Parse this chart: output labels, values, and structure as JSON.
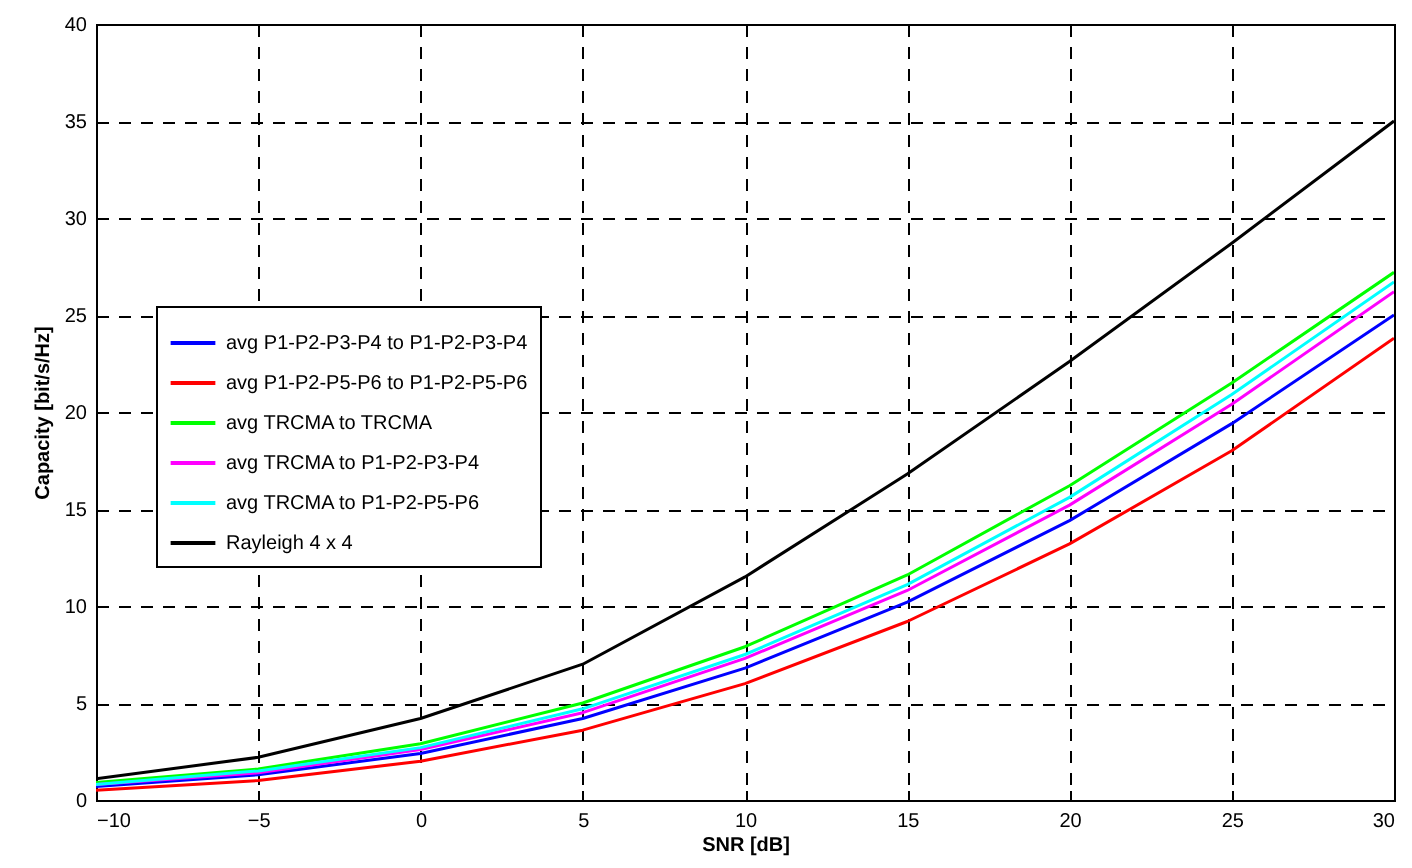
{
  "chart_data": {
    "type": "line",
    "xlabel": "SNR [dB]",
    "ylabel": "Capacity [bit/s/Hz]",
    "x": [
      -10,
      -5,
      0,
      5,
      10,
      15,
      20,
      25,
      30
    ],
    "xlim": [
      -10,
      30
    ],
    "xticks": [
      -10,
      -5,
      0,
      5,
      10,
      15,
      20,
      25,
      30
    ],
    "ylim": [
      0,
      40
    ],
    "yticks": [
      0,
      5,
      10,
      15,
      20,
      25,
      30,
      35,
      40
    ],
    "grid": true,
    "legend": "left",
    "line_style": "solid",
    "series": [
      {
        "name": "avg P1-P2-P3-P4 to P1-P2-P3-P4",
        "color": "#0000ff",
        "values": [
          0.7,
          1.3,
          2.4,
          4.2,
          6.8,
          10.2,
          14.4,
          19.4,
          25.0
        ]
      },
      {
        "name": "avg P1-P2-P5-P6 to P1-P2-P5-P6",
        "color": "#ff0000",
        "values": [
          0.5,
          1.0,
          2.0,
          3.6,
          6.0,
          9.2,
          13.2,
          18.0,
          23.8
        ]
      },
      {
        "name": "avg TRCMA to TRCMA",
        "color": "#00ff00",
        "values": [
          0.9,
          1.6,
          2.9,
          5.0,
          7.9,
          11.6,
          16.2,
          21.5,
          27.2
        ]
      },
      {
        "name": "avg TRCMA to P1-P2-P3-P4",
        "color": "#ff00ff",
        "values": [
          0.8,
          1.4,
          2.6,
          4.5,
          7.3,
          10.8,
          15.2,
          20.4,
          26.2
        ]
      },
      {
        "name": "avg TRCMA to P1-P2-P5-P6",
        "color": "#00ffff",
        "values": [
          0.8,
          1.5,
          2.7,
          4.7,
          7.5,
          11.1,
          15.6,
          20.9,
          26.7
        ]
      },
      {
        "name": "Rayleigh 4 x 4",
        "color": "#000000",
        "values": [
          1.1,
          2.2,
          4.2,
          7.0,
          11.5,
          16.8,
          22.6,
          28.7,
          35.0
        ]
      }
    ]
  }
}
